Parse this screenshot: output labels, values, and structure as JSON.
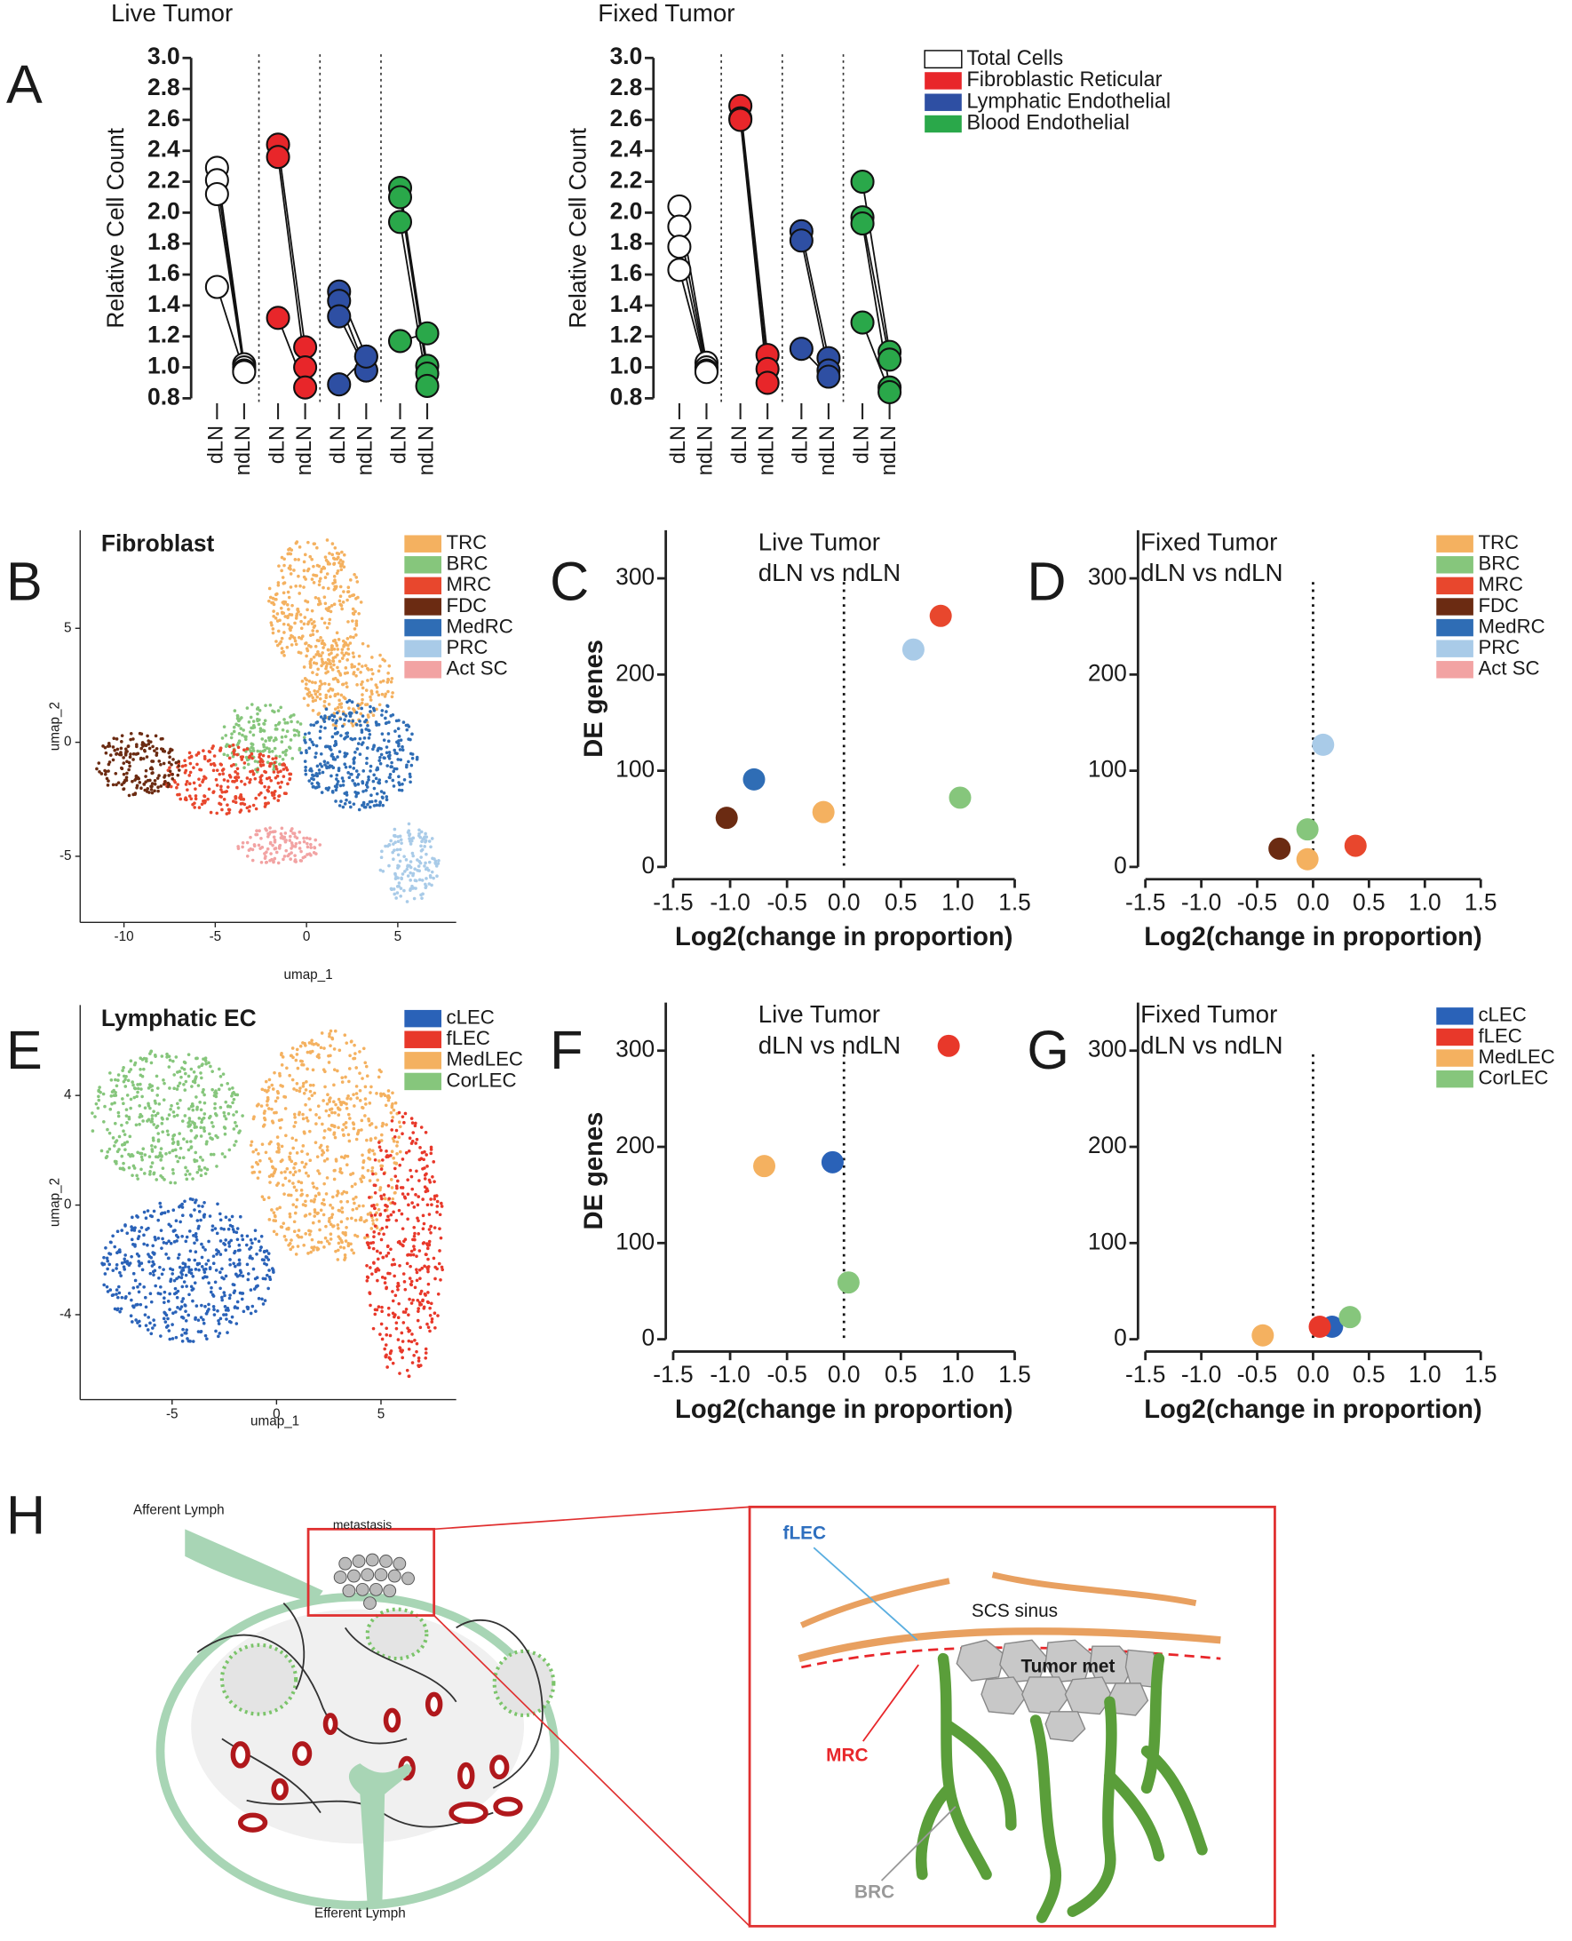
{
  "panel_labels": [
    "A",
    "B",
    "C",
    "D",
    "E",
    "F",
    "G",
    "H"
  ],
  "chart_data": [
    {
      "type": "paired",
      "title": "Live Tumor",
      "ylabel": "Relative Cell Count",
      "categories": [
        "dLN",
        "ndLN"
      ],
      "ylim": [
        0.8,
        3.0
      ],
      "yticks": [
        0.8,
        {
          "value": 1,
          "label": "1.0"
        },
        1.2,
        1.4,
        1.6,
        1.8,
        {
          "value": 2,
          "label": "2.0"
        },
        2.2,
        2.4,
        2.6,
        2.8,
        {
          "value": 3,
          "label": "3.0"
        }
      ],
      "series": [
        {
          "color": "#ffffff",
          "values": [
            [
              2.29,
              1.02
            ],
            [
              2.21,
              1.0
            ],
            [
              2.12,
              0.98
            ],
            [
              1.52,
              0.97
            ]
          ]
        },
        {
          "color": "#e8262a",
          "values": [
            [
              2.44,
              1.13
            ],
            [
              2.36,
              1.0
            ],
            [
              1.32,
              0.87
            ]
          ]
        },
        {
          "color": "#2e4fa3",
          "values": [
            [
              1.49,
              1.07
            ],
            [
              1.43,
              0.98
            ],
            [
              1.33,
              0.98
            ],
            [
              0.89,
              1.07
            ]
          ]
        },
        {
          "color": "#2aa84a",
          "values": [
            [
              2.16,
              1.01
            ],
            [
              2.1,
              0.96
            ],
            [
              1.94,
              0.88
            ],
            [
              1.17,
              1.22
            ]
          ]
        }
      ]
    },
    {
      "type": "paired",
      "title": "Fixed Tumor",
      "ylabel": "Relative Cell Count",
      "categories": [
        "dLN",
        "ndLN"
      ],
      "ylim": [
        0.8,
        3.0
      ],
      "yticks": [
        0.8,
        {
          "value": 1,
          "label": "1.0"
        },
        1.2,
        1.4,
        1.6,
        1.8,
        {
          "value": 2,
          "label": "2.0"
        },
        2.2,
        2.4,
        2.6,
        2.8,
        {
          "value": 3,
          "label": "3.0"
        }
      ],
      "series": [
        {
          "name": "Total Cells",
          "color": "#ffffff",
          "values": [
            [
              2.04,
              1.03
            ],
            [
              1.91,
              1.0
            ],
            [
              1.78,
              0.98
            ],
            [
              1.63,
              0.97
            ]
          ]
        },
        {
          "name": "Fibroblastic Reticular",
          "color": "#e8262a",
          "values": [
            [
              2.69,
              1.08
            ],
            [
              2.61,
              0.99
            ],
            [
              2.6,
              0.9
            ]
          ]
        },
        {
          "name": "Lymphatic Endothelial",
          "color": "#2e4fa3",
          "values": [
            [
              1.88,
              1.06
            ],
            [
              1.82,
              0.98
            ],
            [
              1.12,
              0.94
            ]
          ]
        },
        {
          "name": "Blood Endothelial",
          "color": "#2aa84a",
          "values": [
            [
              2.2,
              1.1
            ],
            [
              1.97,
              1.05
            ],
            [
              1.93,
              0.87
            ],
            [
              1.29,
              0.84
            ]
          ]
        }
      ]
    },
    {
      "type": "umap",
      "title": "Fibroblast",
      "xlabel": "umap_1",
      "ylabel": "umap_2",
      "xlim": [
        -12.4,
        8.2
      ],
      "ylim": [
        -7.9,
        9.3
      ],
      "xticks": [
        -10,
        -5,
        0,
        5
      ],
      "yticks": [
        -5,
        0,
        5
      ],
      "series": [
        {
          "name": "TRC",
          "color": "#f4b160"
        },
        {
          "name": "BRC",
          "color": "#86c67c"
        },
        {
          "name": "MRC",
          "color": "#e8472d"
        },
        {
          "name": "FDC",
          "color": "#6b2b12"
        },
        {
          "name": "MedRC",
          "color": "#2f6db5"
        },
        {
          "name": "PRC",
          "color": "#a9cbe8"
        },
        {
          "name": "Act SC",
          "color": "#f2a3a3"
        }
      ]
    },
    {
      "type": "scatter",
      "title": "Live Tumor",
      "subtitle": "dLN vs ndLN",
      "ylabel": "DE genes",
      "xlabel": "Log2(change in proportion)",
      "xlim": [
        -1.5,
        1.5
      ],
      "xticks": [
        -1.5,
        {
          "value": -1,
          "label": "-1.0"
        },
        -0.5,
        {
          "value": 0,
          "label": "0.0"
        },
        0.5,
        {
          "value": 1,
          "label": "1.0"
        },
        1.5
      ],
      "ylim": [
        0,
        350
      ],
      "yticks": [
        0,
        100,
        200,
        300
      ],
      "series": [
        {
          "color": "#f4b160",
          "x": [
            -0.18
          ],
          "values": [
            57
          ]
        },
        {
          "color": "#86c67c",
          "x": [
            1.02
          ],
          "values": [
            72
          ]
        },
        {
          "color": "#e8472d",
          "x": [
            0.85
          ],
          "values": [
            261
          ]
        },
        {
          "color": "#6b2b12",
          "x": [
            -1.03
          ],
          "values": [
            51
          ]
        },
        {
          "color": "#2f6db5",
          "x": [
            -0.79
          ],
          "values": [
            91
          ]
        },
        {
          "color": "#a9cbe8",
          "x": [
            0.61
          ],
          "values": [
            226
          ]
        }
      ]
    },
    {
      "type": "scatter",
      "title": "Fixed Tumor",
      "subtitle": "dLN vs ndLN",
      "xlabel": "Log2(change in proportion)",
      "xlim": [
        -1.5,
        1.5
      ],
      "xticks": [
        -1.5,
        {
          "value": -1,
          "label": "-1.0"
        },
        -0.5,
        {
          "value": 0,
          "label": "0.0"
        },
        0.5,
        {
          "value": 1,
          "label": "1.0"
        },
        1.5
      ],
      "ylim": [
        0,
        350
      ],
      "yticks": [
        0,
        100,
        200,
        300
      ],
      "series": [
        {
          "name": "TRC",
          "color": "#f4b160",
          "x": [
            -0.05
          ],
          "values": [
            8
          ]
        },
        {
          "name": "BRC",
          "color": "#86c67c",
          "x": [
            -0.05
          ],
          "values": [
            39
          ]
        },
        {
          "name": "MRC",
          "color": "#e8472d",
          "x": [
            0.38
          ],
          "values": [
            22
          ]
        },
        {
          "name": "FDC",
          "color": "#6b2b12",
          "x": [
            -0.3
          ],
          "values": [
            19
          ]
        },
        {
          "name": "MedRC",
          "color": "#2f6db5",
          "x": [],
          "values": []
        },
        {
          "name": "PRC",
          "color": "#a9cbe8",
          "x": [
            0.09
          ],
          "values": [
            127
          ]
        },
        {
          "name": "Act SC",
          "color": "#f2a3a3",
          "x": [],
          "values": []
        }
      ]
    },
    {
      "type": "umap",
      "title": "Lymphatic EC",
      "xlabel": "umap_1",
      "ylabel": "umap_2",
      "xlim": [
        -9.4,
        8.6
      ],
      "ylim": [
        -7.1,
        7.3
      ],
      "xticks": [
        -5,
        0,
        5
      ],
      "yticks": [
        -4,
        0,
        4
      ],
      "series": [
        {
          "name": "cLEC",
          "color": "#2a62b8"
        },
        {
          "name": "fLEC",
          "color": "#e8382a"
        },
        {
          "name": "MedLEC",
          "color": "#f4b160"
        },
        {
          "name": "CorLEC",
          "color": "#86c67c"
        }
      ]
    },
    {
      "type": "scatter",
      "title": "Live Tumor",
      "subtitle": "dLN vs ndLN",
      "ylabel": "DE genes",
      "xlabel": "Log2(change in proportion)",
      "xlim": [
        -1.5,
        1.5
      ],
      "xticks": [
        -1.5,
        {
          "value": -1,
          "label": "-1.0"
        },
        -0.5,
        {
          "value": 0,
          "label": "0.0"
        },
        0.5,
        {
          "value": 1,
          "label": "1.0"
        },
        1.5
      ],
      "ylim": [
        0,
        350
      ],
      "yticks": [
        0,
        100,
        200,
        300
      ],
      "series": [
        {
          "color": "#2a62b8",
          "x": [
            -0.1
          ],
          "values": [
            184
          ]
        },
        {
          "color": "#e8382a",
          "x": [
            0.92
          ],
          "values": [
            305
          ]
        },
        {
          "color": "#f4b160",
          "x": [
            -0.7
          ],
          "values": [
            180
          ]
        },
        {
          "color": "#86c67c",
          "x": [
            0.04
          ],
          "values": [
            59
          ]
        }
      ]
    },
    {
      "type": "scatter",
      "title": "Fixed Tumor",
      "subtitle": "dLN vs ndLN",
      "xlabel": "Log2(change in proportion)",
      "xlim": [
        -1.5,
        1.5
      ],
      "xticks": [
        -1.5,
        {
          "value": -1,
          "label": "-1.0"
        },
        -0.5,
        {
          "value": 0,
          "label": "0.0"
        },
        0.5,
        {
          "value": 1,
          "label": "1.0"
        },
        1.5
      ],
      "ylim": [
        0,
        350
      ],
      "yticks": [
        0,
        100,
        200,
        300
      ],
      "series": [
        {
          "name": "cLEC",
          "color": "#2a62b8",
          "x": [
            0.17
          ],
          "values": [
            13
          ]
        },
        {
          "name": "fLEC",
          "color": "#e8382a",
          "x": [
            0.06
          ],
          "values": [
            13
          ]
        },
        {
          "name": "MedLEC",
          "color": "#f4b160",
          "x": [
            -0.45
          ],
          "values": [
            4
          ]
        },
        {
          "name": "CorLEC",
          "color": "#86c67c",
          "x": [
            0.33
          ],
          "values": [
            23
          ]
        }
      ]
    }
  ],
  "diagram": {
    "labels": [
      "Afferent Lymph",
      "metastasis",
      "Efferent Lymph",
      "fLEC",
      "SCS sinus",
      "Tumor met",
      "MRC",
      "BRC"
    ]
  }
}
